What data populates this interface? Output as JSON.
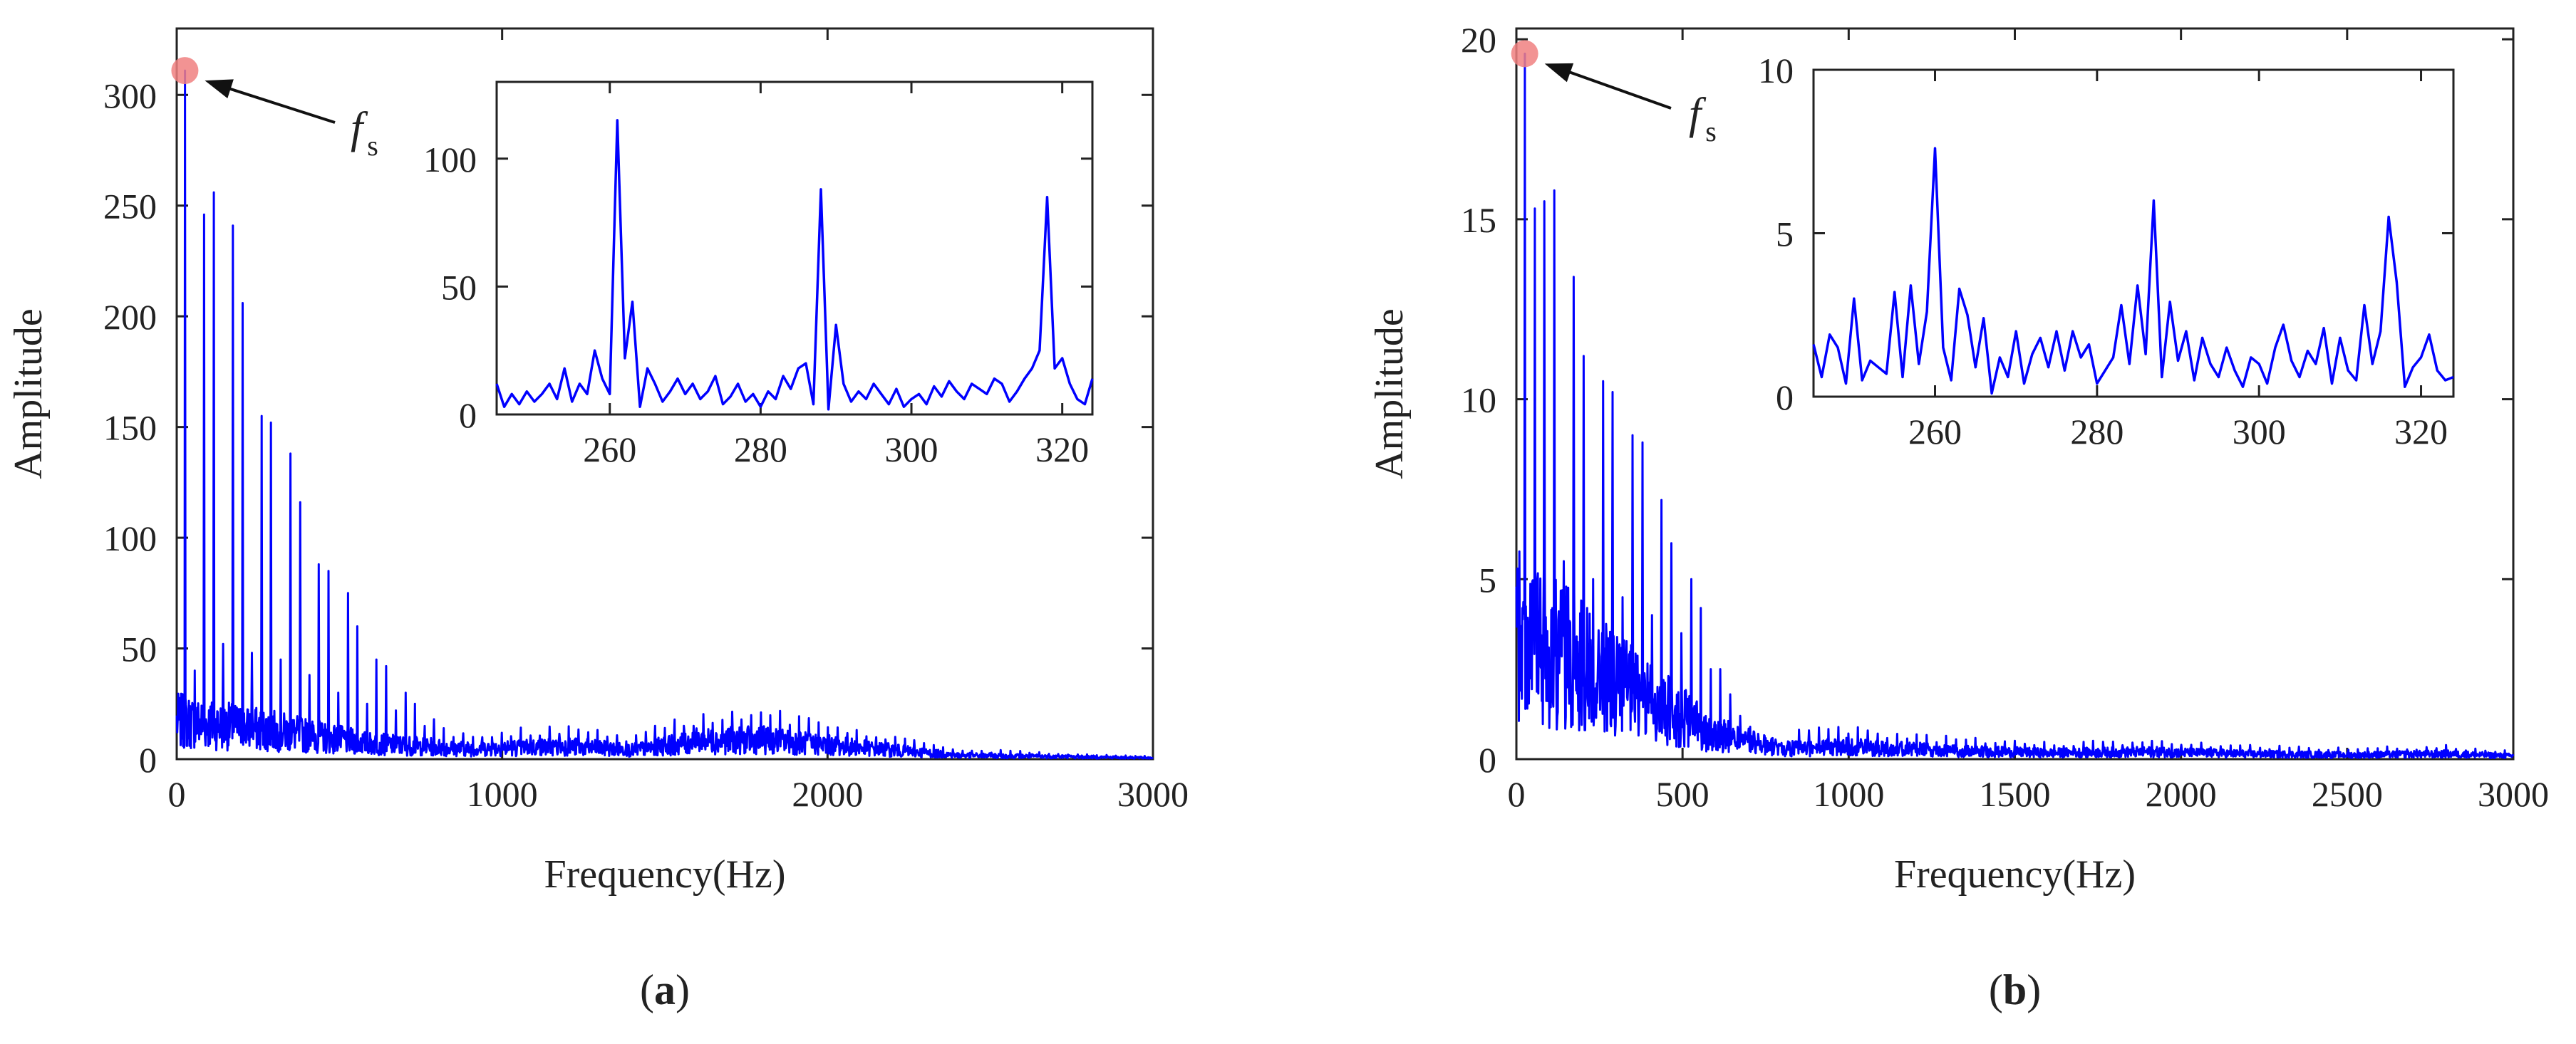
{
  "chart_data": [
    {
      "type": "line",
      "panel_label": "a",
      "xlabel": "Frequency(Hz)",
      "ylabel": "Amplitude",
      "xlim": [
        0,
        3000
      ],
      "ylim": [
        0,
        330
      ],
      "xticks": [
        0,
        1000,
        2000,
        3000
      ],
      "yticks": [
        0,
        50,
        100,
        150,
        200,
        250,
        300
      ],
      "series_color": "#0000ff",
      "peak_marker": {
        "x": 25,
        "y": 311,
        "color": "#f08080"
      },
      "annotation": {
        "label": "f",
        "subscript": "s"
      },
      "harmonic_spacing_hz": 29.5,
      "harmonic_peaks": [
        {
          "x": 25,
          "y": 311
        },
        {
          "x": 55,
          "y": 40
        },
        {
          "x": 84,
          "y": 246
        },
        {
          "x": 114,
          "y": 256
        },
        {
          "x": 143,
          "y": 52
        },
        {
          "x": 172,
          "y": 241
        },
        {
          "x": 202,
          "y": 206
        },
        {
          "x": 231,
          "y": 48
        },
        {
          "x": 261,
          "y": 155
        },
        {
          "x": 290,
          "y": 152
        },
        {
          "x": 320,
          "y": 45
        },
        {
          "x": 349,
          "y": 138
        },
        {
          "x": 379,
          "y": 116
        },
        {
          "x": 408,
          "y": 38
        },
        {
          "x": 437,
          "y": 88
        },
        {
          "x": 467,
          "y": 85
        },
        {
          "x": 496,
          "y": 30
        },
        {
          "x": 526,
          "y": 75
        },
        {
          "x": 555,
          "y": 60
        },
        {
          "x": 585,
          "y": 25
        },
        {
          "x": 614,
          "y": 45
        },
        {
          "x": 644,
          "y": 42
        },
        {
          "x": 673,
          "y": 22
        },
        {
          "x": 703,
          "y": 30
        },
        {
          "x": 732,
          "y": 25
        },
        {
          "x": 762,
          "y": 15
        },
        {
          "x": 791,
          "y": 18
        },
        {
          "x": 821,
          "y": 14
        },
        {
          "x": 850,
          "y": 10
        }
      ],
      "envelope": [
        {
          "x": 0,
          "y": 30
        },
        {
          "x": 300,
          "y": 22
        },
        {
          "x": 600,
          "y": 12
        },
        {
          "x": 900,
          "y": 8
        },
        {
          "x": 1200,
          "y": 10
        },
        {
          "x": 1400,
          "y": 7
        },
        {
          "x": 1600,
          "y": 14
        },
        {
          "x": 1800,
          "y": 15
        },
        {
          "x": 2000,
          "y": 11
        },
        {
          "x": 2200,
          "y": 7
        },
        {
          "x": 2400,
          "y": 3
        },
        {
          "x": 2700,
          "y": 2
        },
        {
          "x": 3000,
          "y": 1
        }
      ],
      "inset": {
        "xlim": [
          245,
          324
        ],
        "ylim": [
          0,
          130
        ],
        "xticks": [
          260,
          280,
          300,
          320
        ],
        "yticks": [
          0,
          50,
          100
        ],
        "x": [
          245,
          246,
          247,
          248,
          249,
          250,
          251,
          252,
          253,
          254,
          255,
          256,
          257,
          258,
          259,
          260,
          261,
          262,
          263,
          264,
          265,
          266,
          267,
          268,
          269,
          270,
          271,
          272,
          273,
          274,
          275,
          276,
          277,
          278,
          279,
          280,
          281,
          282,
          283,
          284,
          285,
          286,
          287,
          288,
          289,
          290,
          291,
          292,
          293,
          294,
          295,
          296,
          297,
          298,
          299,
          300,
          301,
          302,
          303,
          304,
          305,
          306,
          307,
          308,
          309,
          310,
          311,
          312,
          313,
          314,
          315,
          316,
          317,
          318,
          319,
          320,
          321,
          322,
          323,
          324
        ],
        "y": [
          12,
          3,
          8,
          4,
          9,
          5,
          8,
          12,
          6,
          18,
          5,
          12,
          8,
          25,
          14,
          8,
          115,
          22,
          44,
          3,
          18,
          12,
          5,
          9,
          14,
          8,
          12,
          6,
          9,
          15,
          4,
          7,
          12,
          5,
          8,
          3,
          9,
          6,
          15,
          10,
          18,
          20,
          4,
          88,
          2,
          35,
          12,
          5,
          9,
          6,
          12,
          8,
          4,
          10,
          3,
          6,
          8,
          4,
          11,
          7,
          13,
          9,
          6,
          12,
          10,
          8,
          14,
          12,
          5,
          9,
          14,
          18,
          25,
          85,
          18,
          22,
          12,
          6,
          4,
          14
        ]
      }
    },
    {
      "type": "line",
      "panel_label": "b",
      "xlabel": "Frequency(Hz)",
      "ylabel": "Amplitude",
      "xlim": [
        0,
        3000
      ],
      "ylim": [
        0,
        20.3
      ],
      "xticks": [
        0,
        500,
        1000,
        1500,
        2000,
        2500,
        3000
      ],
      "yticks": [
        0,
        5,
        10,
        15,
        20
      ],
      "series_color": "#0000ff",
      "peak_marker": {
        "x": 25,
        "y": 19.6,
        "color": "#f08080"
      },
      "annotation": {
        "label": "f",
        "subscript": "s"
      },
      "harmonic_spacing_hz": 29.5,
      "harmonic_peaks": [
        {
          "x": 25,
          "y": 19.6
        },
        {
          "x": 55,
          "y": 15.3
        },
        {
          "x": 84,
          "y": 15.5
        },
        {
          "x": 114,
          "y": 15.8
        },
        {
          "x": 143,
          "y": 5.5
        },
        {
          "x": 172,
          "y": 13.4
        },
        {
          "x": 202,
          "y": 11.2
        },
        {
          "x": 231,
          "y": 5.0
        },
        {
          "x": 261,
          "y": 10.5
        },
        {
          "x": 290,
          "y": 10.2
        },
        {
          "x": 320,
          "y": 4.5
        },
        {
          "x": 349,
          "y": 9.0
        },
        {
          "x": 379,
          "y": 8.8
        },
        {
          "x": 408,
          "y": 4.0
        },
        {
          "x": 437,
          "y": 7.2
        },
        {
          "x": 467,
          "y": 6.0
        },
        {
          "x": 496,
          "y": 3.5
        },
        {
          "x": 526,
          "y": 5.0
        },
        {
          "x": 555,
          "y": 4.2
        },
        {
          "x": 585,
          "y": 2.5
        },
        {
          "x": 614,
          "y": 2.5
        },
        {
          "x": 644,
          "y": 1.8
        },
        {
          "x": 673,
          "y": 1.2
        },
        {
          "x": 703,
          "y": 0.9
        }
      ],
      "envelope": [
        {
          "x": 0,
          "y": 6
        },
        {
          "x": 200,
          "y": 4.5
        },
        {
          "x": 400,
          "y": 2.8
        },
        {
          "x": 600,
          "y": 1.2
        },
        {
          "x": 800,
          "y": 0.5
        },
        {
          "x": 1000,
          "y": 0.6
        },
        {
          "x": 1300,
          "y": 0.4
        },
        {
          "x": 1600,
          "y": 0.3
        },
        {
          "x": 1900,
          "y": 0.35
        },
        {
          "x": 2200,
          "y": 0.25
        },
        {
          "x": 2500,
          "y": 0.2
        },
        {
          "x": 2800,
          "y": 0.25
        },
        {
          "x": 3000,
          "y": 0.15
        }
      ],
      "inset": {
        "xlim": [
          245,
          324
        ],
        "ylim": [
          0,
          10
        ],
        "xticks": [
          260,
          280,
          300,
          320
        ],
        "yticks": [
          0,
          5,
          10
        ],
        "x": [
          245,
          246,
          247,
          248,
          249,
          250,
          251,
          252,
          253,
          254,
          255,
          256,
          257,
          258,
          259,
          260,
          261,
          262,
          263,
          264,
          265,
          266,
          267,
          268,
          269,
          270,
          271,
          272,
          273,
          274,
          275,
          276,
          277,
          278,
          279,
          280,
          281,
          282,
          283,
          284,
          285,
          286,
          287,
          288,
          289,
          290,
          291,
          292,
          293,
          294,
          295,
          296,
          297,
          298,
          299,
          300,
          301,
          302,
          303,
          304,
          305,
          306,
          307,
          308,
          309,
          310,
          311,
          312,
          313,
          314,
          315,
          316,
          317,
          318,
          319,
          320,
          321,
          322,
          323,
          324
        ],
        "y": [
          1.6,
          0.6,
          1.9,
          1.5,
          0.4,
          3.0,
          0.5,
          1.1,
          0.9,
          0.7,
          3.2,
          0.6,
          3.4,
          1.0,
          2.6,
          7.6,
          1.5,
          0.5,
          3.3,
          2.5,
          0.9,
          2.4,
          0.1,
          1.2,
          0.6,
          2.0,
          0.4,
          1.3,
          1.8,
          0.9,
          2.0,
          0.8,
          2.0,
          1.2,
          1.6,
          0.4,
          0.8,
          1.2,
          2.8,
          1.0,
          3.4,
          1.3,
          6.0,
          0.6,
          2.9,
          1.1,
          2.0,
          0.5,
          1.8,
          1.0,
          0.6,
          1.5,
          0.8,
          0.3,
          1.2,
          1.0,
          0.4,
          1.5,
          2.2,
          1.1,
          0.6,
          1.4,
          1.0,
          2.1,
          0.4,
          1.8,
          0.8,
          0.5,
          2.8,
          1.0,
          2.0,
          5.5,
          3.5,
          0.3,
          0.9,
          1.2,
          1.9,
          0.8,
          0.5,
          0.6
        ]
      }
    }
  ]
}
